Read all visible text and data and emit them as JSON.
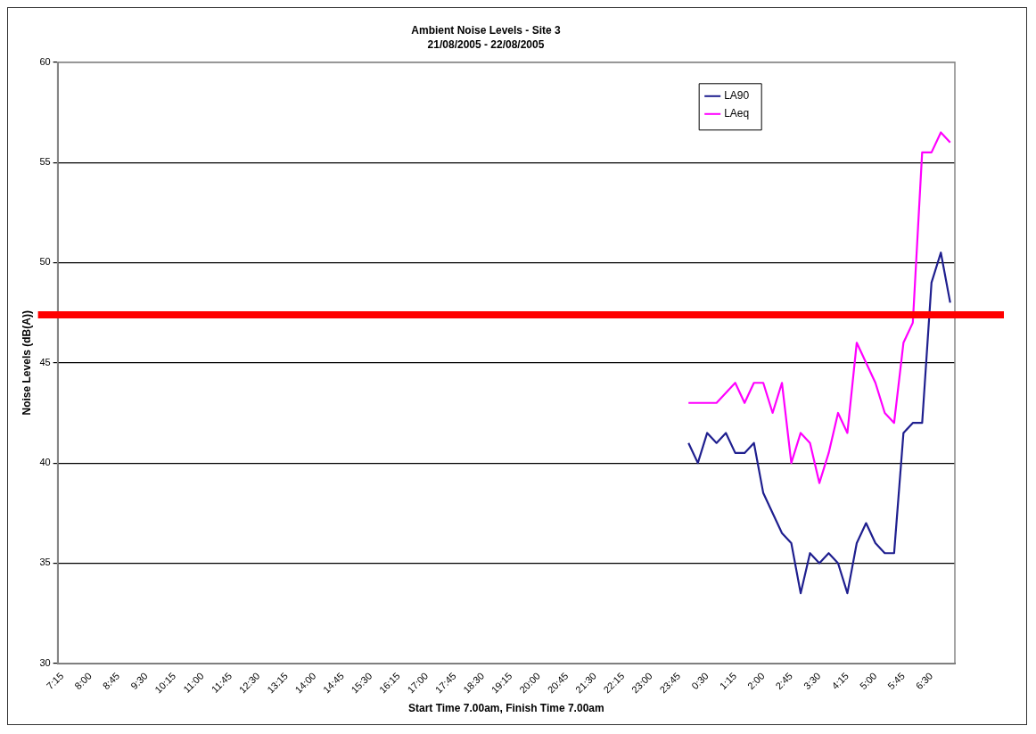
{
  "chart_data": {
    "type": "line",
    "title": "Ambient Noise Levels - Site 3",
    "subtitle": "21/08/2005 - 22/08/2005",
    "xlabel": "Start Time 7.00am, Finish Time 7.00am",
    "ylabel": "Noise Levels (dB(A))",
    "categories": [
      "7:15",
      null,
      null,
      "8:00",
      null,
      null,
      "8:45",
      null,
      null,
      "9:30",
      null,
      null,
      "10:15",
      null,
      null,
      "11:00",
      null,
      null,
      "11:45",
      null,
      null,
      "12:30",
      null,
      null,
      "13:15",
      null,
      null,
      "14:00",
      null,
      null,
      "14:45",
      null,
      null,
      "15:30",
      null,
      null,
      "16:15",
      null,
      null,
      "17:00",
      null,
      null,
      "17:45",
      null,
      null,
      "18:30",
      null,
      null,
      "19:15",
      null,
      null,
      "20:00",
      null,
      null,
      "20:45",
      null,
      null,
      "21:30",
      null,
      null,
      "22:15",
      null,
      null,
      "23:00",
      null,
      null,
      "23:45",
      null,
      null,
      "0:30",
      null,
      null,
      "1:15",
      null,
      null,
      "2:00",
      null,
      null,
      "2:45",
      null,
      null,
      "3:30",
      null,
      null,
      "4:15",
      null,
      null,
      "5:00",
      null,
      null,
      "5:45",
      null,
      null,
      "6:30",
      null,
      null
    ],
    "series": [
      {
        "name": "LA90",
        "color": "#1f1f8f",
        "values": [
          null,
          null,
          null,
          null,
          null,
          null,
          null,
          null,
          null,
          null,
          null,
          null,
          null,
          null,
          null,
          null,
          null,
          null,
          null,
          null,
          null,
          null,
          null,
          null,
          null,
          null,
          null,
          null,
          null,
          null,
          null,
          null,
          null,
          null,
          null,
          null,
          null,
          null,
          null,
          null,
          null,
          null,
          null,
          null,
          null,
          null,
          null,
          null,
          null,
          null,
          null,
          null,
          null,
          null,
          null,
          null,
          null,
          null,
          null,
          null,
          null,
          null,
          null,
          null,
          null,
          null,
          null,
          41,
          40,
          41.5,
          41,
          41.5,
          40.5,
          40.5,
          41,
          38.5,
          37.5,
          36.5,
          36,
          33.5,
          35.5,
          35,
          35.5,
          35,
          33.5,
          36,
          37,
          36,
          35.5,
          35.5,
          41.5,
          42,
          42,
          49,
          50.5,
          48
        ]
      },
      {
        "name": "LAeq",
        "color": "#ff00ff",
        "values": [
          null,
          null,
          null,
          null,
          null,
          null,
          null,
          null,
          null,
          null,
          null,
          null,
          null,
          null,
          null,
          null,
          null,
          null,
          null,
          null,
          null,
          null,
          null,
          null,
          null,
          null,
          null,
          null,
          null,
          null,
          null,
          null,
          null,
          null,
          null,
          null,
          null,
          null,
          null,
          null,
          null,
          null,
          null,
          null,
          null,
          null,
          null,
          null,
          null,
          null,
          null,
          null,
          null,
          null,
          null,
          null,
          null,
          null,
          null,
          null,
          null,
          null,
          null,
          null,
          null,
          null,
          null,
          43,
          43,
          43,
          43,
          43.5,
          44,
          43,
          44,
          44,
          42.5,
          44,
          40,
          41.5,
          41,
          39,
          40.5,
          42.5,
          41.5,
          46,
          45,
          44,
          42.5,
          42,
          46,
          47,
          55.5,
          55.5,
          56.5,
          56
        ]
      }
    ],
    "ylim": [
      30,
      60
    ],
    "yticks": [
      30,
      35,
      40,
      45,
      50,
      55,
      60
    ],
    "grid": "y",
    "legend": "top right",
    "marker": "none",
    "line_style": "solid",
    "ref_lines": [
      {
        "axis": "y",
        "value": 47.4,
        "color": "#ff0000"
      }
    ]
  }
}
